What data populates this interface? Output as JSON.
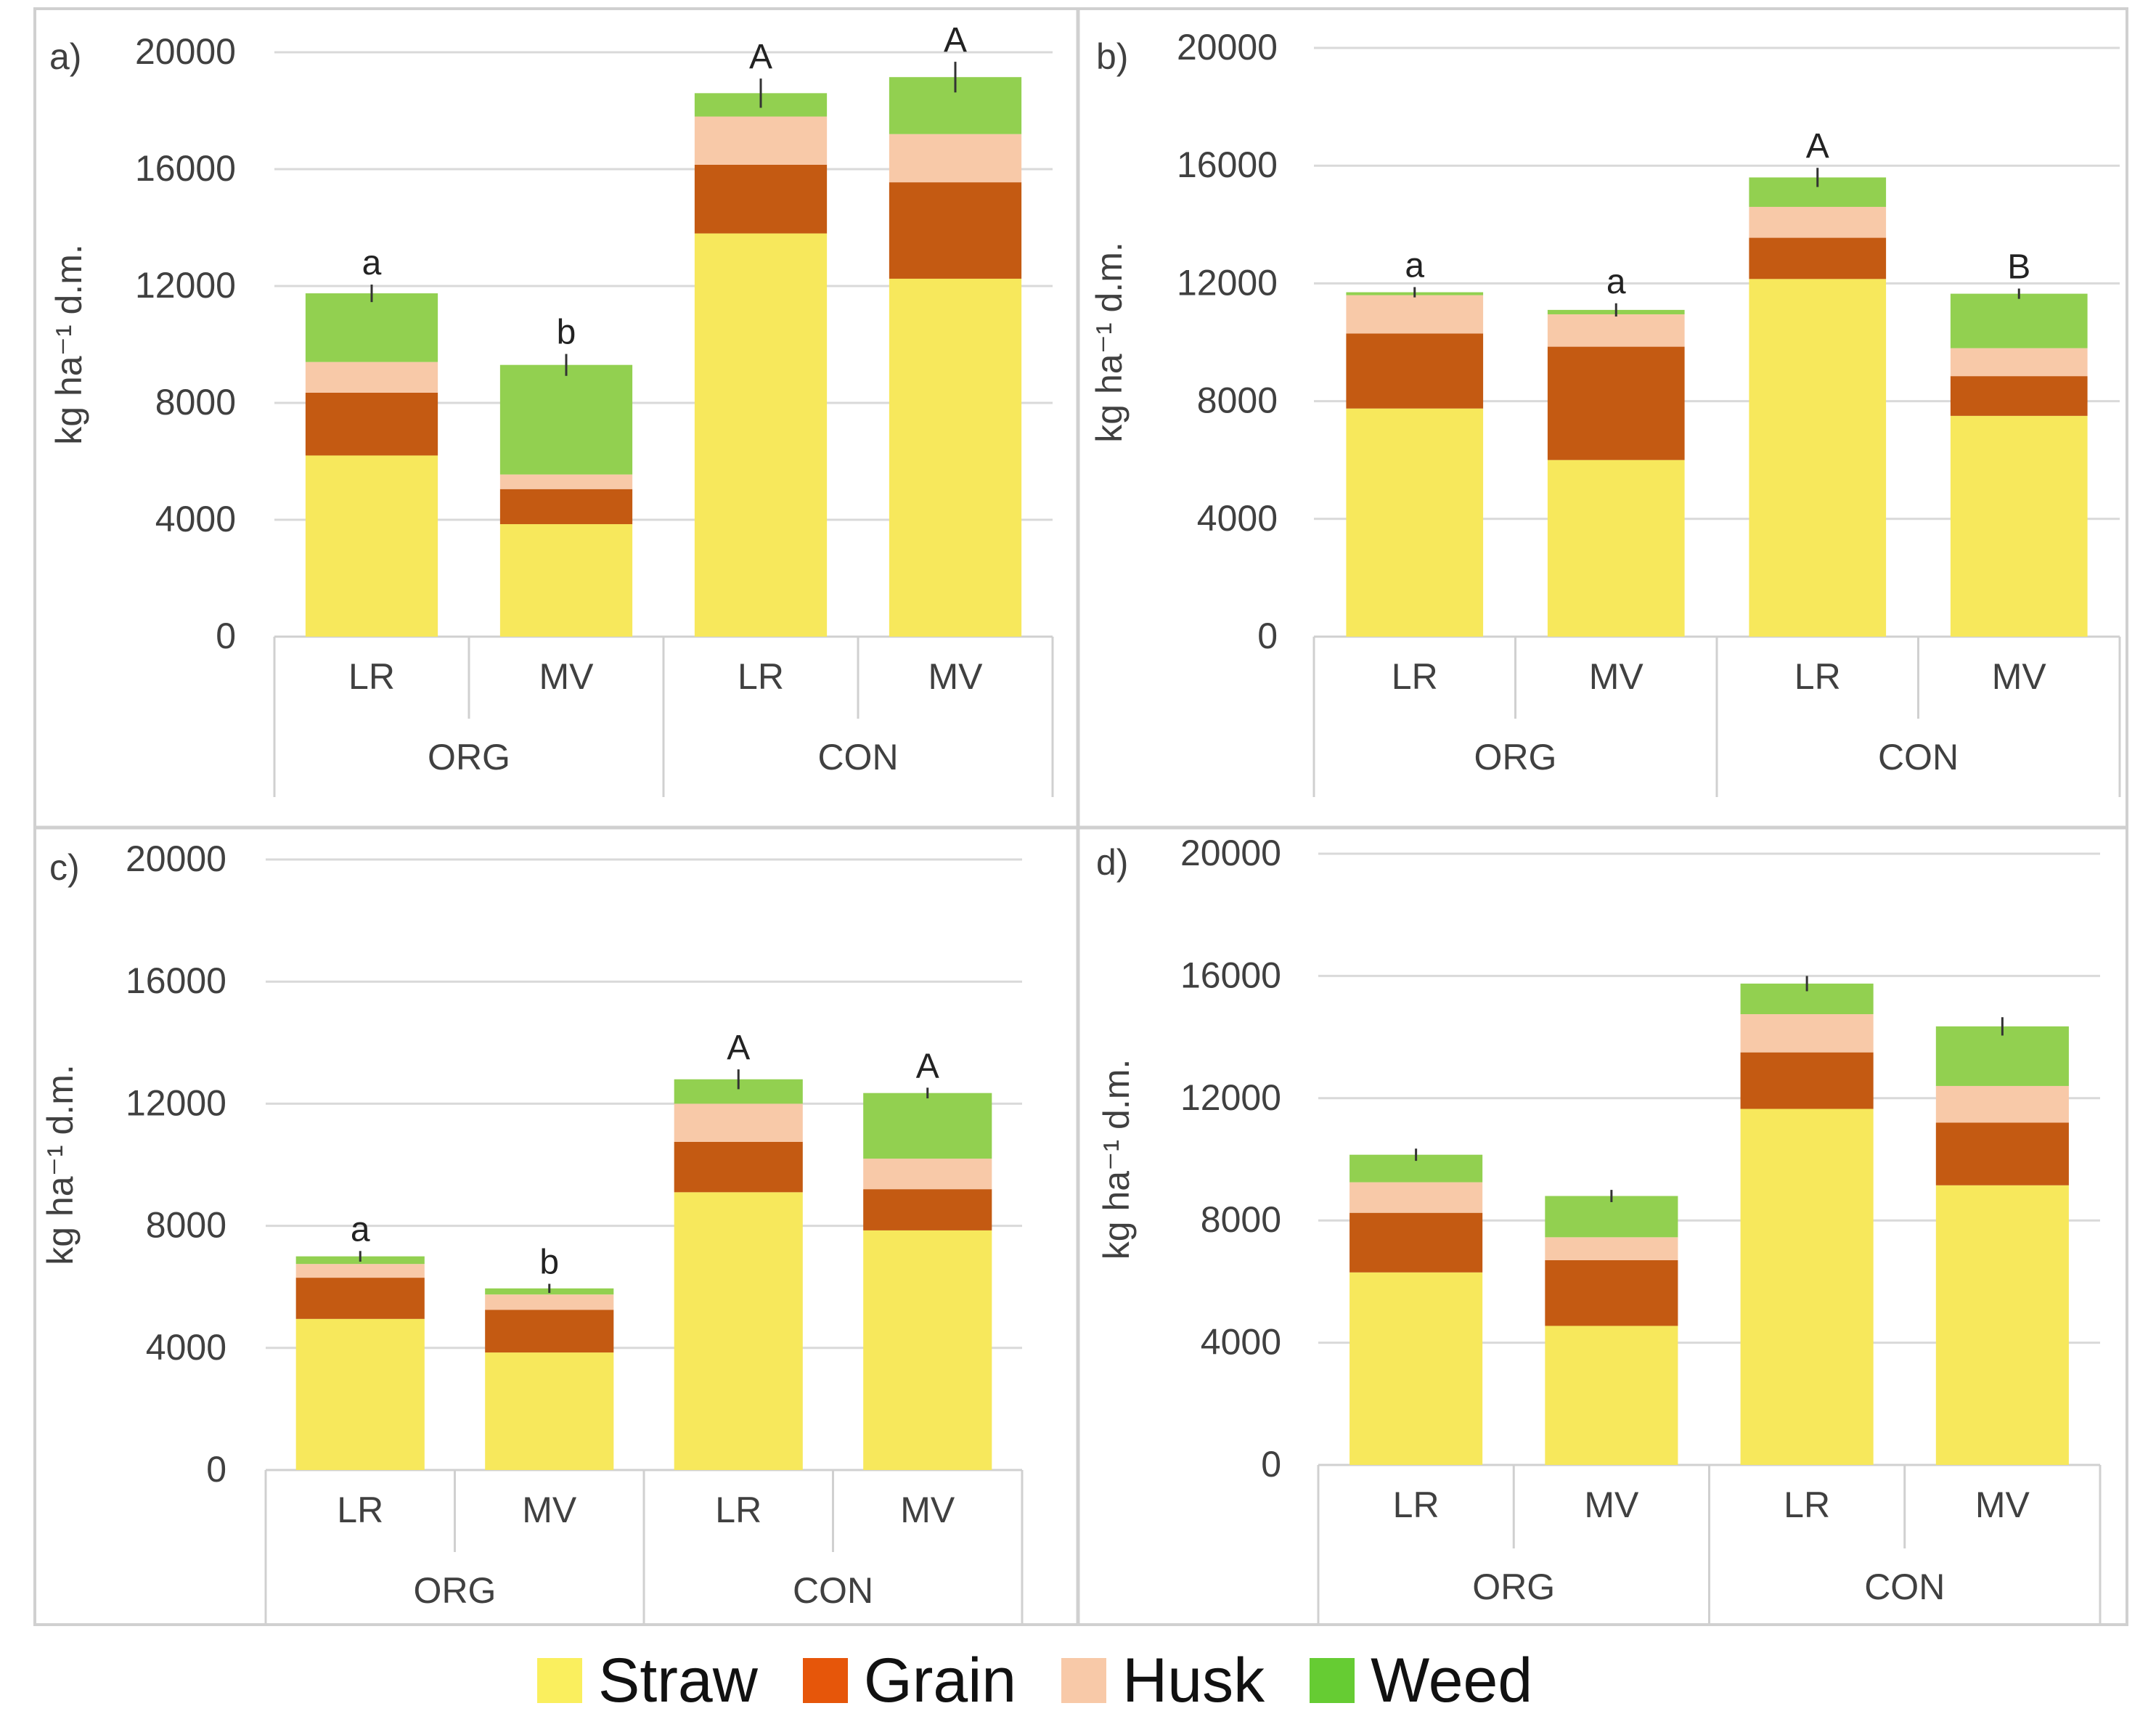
{
  "series_colors": {
    "Straw": "#f7e85c",
    "Grain": "#c45a12",
    "Husk": "#f8c9a8",
    "Weed": "#92d050"
  },
  "legend": {
    "items": [
      {
        "name": "Straw",
        "swatch_color": "#faef5e"
      },
      {
        "name": "Grain",
        "swatch_color": "#e6560a"
      },
      {
        "name": "Husk",
        "swatch_color": "#f8c9a8"
      },
      {
        "name": "Weed",
        "swatch_color": "#66cc33"
      }
    ]
  },
  "chart_data": [
    {
      "type": "bar",
      "stacked": true,
      "panel_label": "a)",
      "ylabel": "kg ha⁻¹ d.m.",
      "ylim": [
        0,
        20000
      ],
      "yticks": [
        0,
        4000,
        8000,
        12000,
        16000,
        20000
      ],
      "groups": [
        "ORG",
        "CON"
      ],
      "categories": [
        "LR",
        "MV",
        "LR",
        "MV"
      ],
      "series": [
        {
          "name": "Straw",
          "values": [
            6200,
            3850,
            13800,
            12250
          ]
        },
        {
          "name": "Grain",
          "values": [
            2150,
            1200,
            2350,
            3300
          ]
        },
        {
          "name": "Husk",
          "values": [
            1050,
            500,
            1650,
            1650
          ]
        },
        {
          "name": "Weed",
          "values": [
            2350,
            3750,
            800,
            1950
          ]
        }
      ],
      "error": [
        600,
        750,
        1000,
        1050
      ],
      "letters": [
        "a",
        "b",
        "A",
        "A"
      ]
    },
    {
      "type": "bar",
      "stacked": true,
      "panel_label": "b)",
      "ylabel": "kg ha⁻¹ d.m.",
      "ylim": [
        0,
        20000
      ],
      "yticks": [
        0,
        4000,
        8000,
        12000,
        16000,
        20000
      ],
      "groups": [
        "ORG",
        "CON"
      ],
      "categories": [
        "LR",
        "MV",
        "LR",
        "MV"
      ],
      "series": [
        {
          "name": "Straw",
          "values": [
            7750,
            6000,
            12150,
            7500
          ]
        },
        {
          "name": "Grain",
          "values": [
            2550,
            3850,
            1400,
            1350
          ]
        },
        {
          "name": "Husk",
          "values": [
            1300,
            1100,
            1050,
            950
          ]
        },
        {
          "name": "Weed",
          "values": [
            100,
            150,
            1000,
            1850
          ]
        }
      ],
      "error": [
        350,
        450,
        650,
        350
      ],
      "letters": [
        "a",
        "a",
        "A",
        "B"
      ]
    },
    {
      "type": "bar",
      "stacked": true,
      "panel_label": "c)",
      "ylabel": "kg ha⁻¹ d.m.",
      "ylim": [
        0,
        20000
      ],
      "yticks": [
        0,
        4000,
        8000,
        12000,
        16000,
        20000
      ],
      "groups": [
        "ORG",
        "CON"
      ],
      "categories": [
        "LR",
        "MV",
        "LR",
        "MV"
      ],
      "series": [
        {
          "name": "Straw",
          "values": [
            4950,
            3850,
            9100,
            7850
          ]
        },
        {
          "name": "Grain",
          "values": [
            1350,
            1400,
            1650,
            1350
          ]
        },
        {
          "name": "Husk",
          "values": [
            450,
            500,
            1250,
            1000
          ]
        },
        {
          "name": "Weed",
          "values": [
            250,
            200,
            800,
            2150
          ]
        }
      ],
      "error": [
        350,
        300,
        650,
        350
      ],
      "letters": [
        "a",
        "b",
        "A",
        "A"
      ]
    },
    {
      "type": "bar",
      "stacked": true,
      "panel_label": "d)",
      "ylabel": "kg ha⁻¹ d.m.",
      "ylim": [
        0,
        20000
      ],
      "yticks": [
        0,
        4000,
        8000,
        12000,
        16000,
        20000
      ],
      "groups": [
        "ORG",
        "CON"
      ],
      "categories": [
        "LR",
        "MV",
        "LR",
        "MV"
      ],
      "series": [
        {
          "name": "Straw",
          "values": [
            6300,
            4550,
            11650,
            9150
          ]
        },
        {
          "name": "Grain",
          "values": [
            1950,
            2150,
            1850,
            2050
          ]
        },
        {
          "name": "Husk",
          "values": [
            1000,
            750,
            1250,
            1200
          ]
        },
        {
          "name": "Weed",
          "values": [
            900,
            1350,
            1000,
            1950
          ]
        }
      ],
      "error": [
        400,
        400,
        500,
        600
      ],
      "letters": [
        "",
        "",
        "",
        ""
      ]
    }
  ]
}
